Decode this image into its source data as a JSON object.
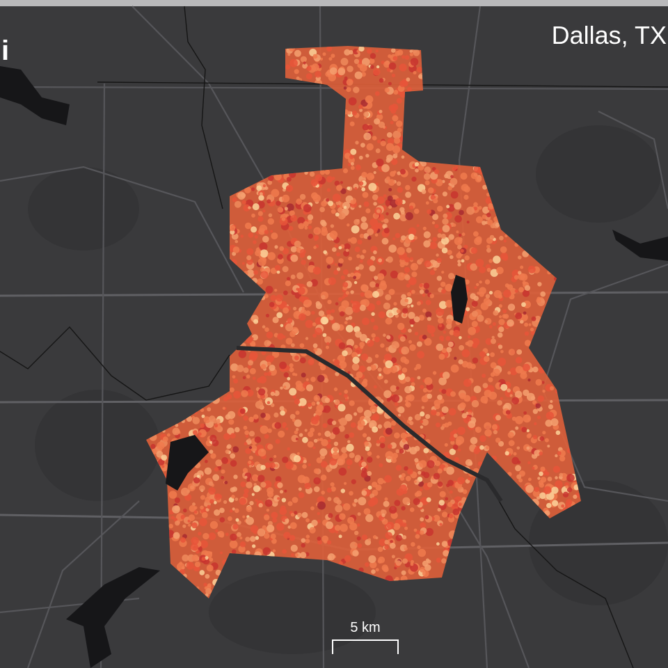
{
  "panel_label": "i",
  "city": "Dallas, TX",
  "scale_bar": {
    "label": "5 km"
  }
}
